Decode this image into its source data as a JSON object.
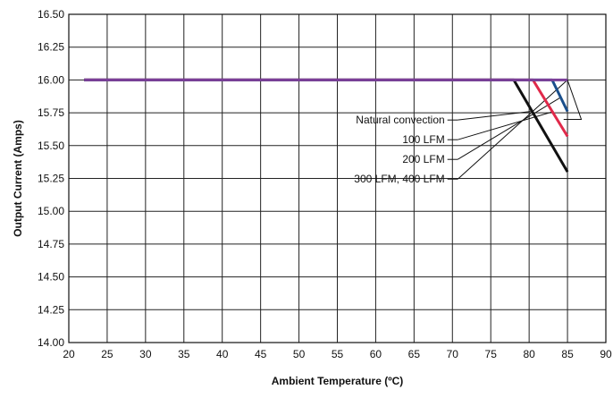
{
  "chart_data": {
    "type": "line",
    "xlabel": "Ambient Temperature (ºC)",
    "ylabel": "Output Current (Amps)",
    "xlim": [
      20,
      90
    ],
    "ylim": [
      14.0,
      16.5
    ],
    "x_ticks": [
      "20",
      "25",
      "30",
      "35",
      "40",
      "45",
      "50",
      "55",
      "60",
      "65",
      "70",
      "75",
      "80",
      "85",
      "90"
    ],
    "y_ticks": [
      "16.50",
      "16.25",
      "16.00",
      "15.75",
      "15.50",
      "15.25",
      "15.00",
      "14.75",
      "14.50",
      "14.25",
      "14.00"
    ],
    "grid": true,
    "series": [
      {
        "name": "Natural convection",
        "color": "#111111",
        "points": [
          [
            22,
            16.0
          ],
          [
            78,
            16.0
          ],
          [
            85,
            15.3
          ]
        ]
      },
      {
        "name": "100 LFM",
        "color": "#e0294a",
        "points": [
          [
            22,
            16.0
          ],
          [
            80.5,
            16.0
          ],
          [
            85,
            15.57
          ]
        ]
      },
      {
        "name": "200 LFM",
        "color": "#1a4f8b",
        "points": [
          [
            22,
            16.0
          ],
          [
            83,
            16.0
          ],
          [
            85,
            15.76
          ]
        ]
      },
      {
        "name": "300 LFM, 400 LFM",
        "color": "#7b3f98",
        "points": [
          [
            22,
            16.0
          ],
          [
            85,
            16.0
          ]
        ]
      }
    ],
    "annotations": [
      {
        "text": "Natural convection",
        "label_y": 15.695,
        "target": [
          80.2,
          15.76
        ]
      },
      {
        "text": "100 LFM",
        "label_y": 15.545,
        "target": [
          83.2,
          15.76
        ]
      },
      {
        "text": "200 LFM",
        "label_y": 15.395,
        "target": [
          84.2,
          15.87
        ]
      },
      {
        "text": "300 LFM, 400 LFM",
        "label_y": 15.245,
        "target": [
          85,
          16.0
        ]
      }
    ]
  }
}
